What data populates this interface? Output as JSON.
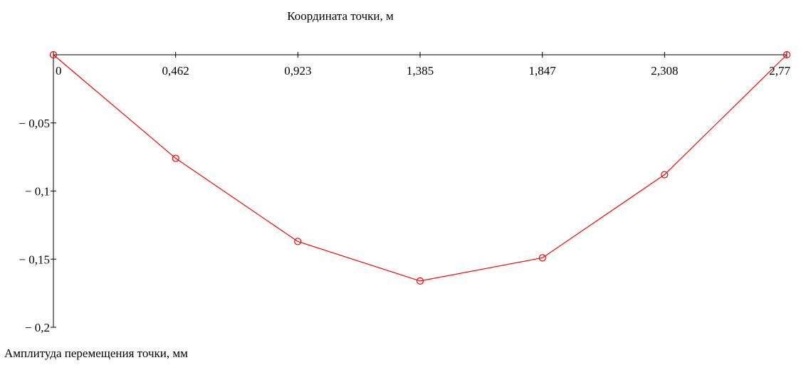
{
  "chart_data": {
    "type": "line",
    "title": "Координата точки, м",
    "xlabel": "Координата точки, м",
    "ylabel": "Амплитуда перемещения точки, мм",
    "x_ticks": [
      "0",
      "0,462",
      "0,923",
      "1,385",
      "1,847",
      "2,308",
      "2,77"
    ],
    "y_ticks": [
      "− 0,05",
      "− 0,1",
      "− 0,15",
      "− 0,2"
    ],
    "xlim": [
      0,
      2.77
    ],
    "ylim": [
      -0.2,
      0
    ],
    "x": [
      0,
      0.462,
      0.923,
      1.385,
      1.847,
      2.308,
      2.77
    ],
    "y": [
      0,
      -0.076,
      -0.137,
      -0.166,
      -0.149,
      -0.088,
      0
    ],
    "markers": "circle",
    "color": "#ff0000",
    "axis_color": "#000000",
    "x_axis_position": "top",
    "grid": false,
    "legend": false
  }
}
